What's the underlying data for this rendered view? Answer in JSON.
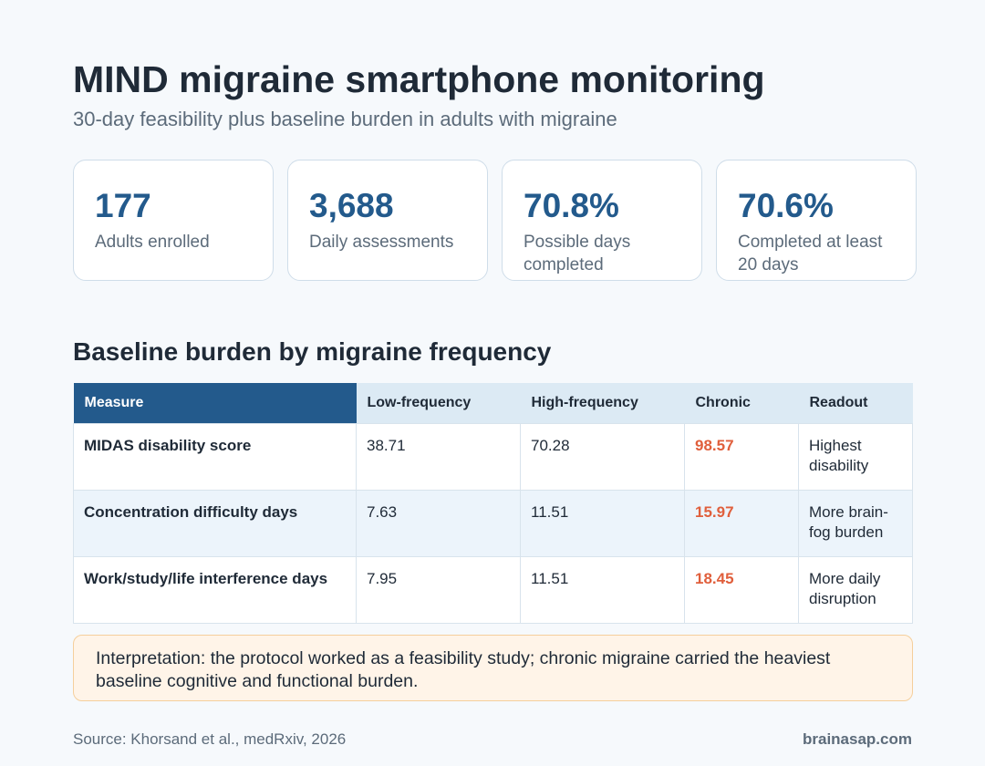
{
  "header": {
    "title": "MIND migraine smartphone monitoring",
    "subtitle": "30-day feasibility plus baseline burden in adults with migraine"
  },
  "stats": [
    {
      "value": "177",
      "label": "Adults enrolled"
    },
    {
      "value": "3,688",
      "label": "Daily assessments"
    },
    {
      "value": "70.8%",
      "label": "Possible days completed"
    },
    {
      "value": "70.6%",
      "label": "Completed at least 20 days"
    }
  ],
  "table": {
    "title": "Baseline burden by migraine frequency",
    "headers": {
      "measure": "Measure",
      "low": "Low-frequency",
      "high": "High-frequency",
      "chronic": "Chronic",
      "readout": "Readout"
    },
    "rows": [
      {
        "measure": "MIDAS disability score",
        "low": "38.71",
        "high": "70.28",
        "chronic": "98.57",
        "readout": "Highest disability"
      },
      {
        "measure": "Concentration difficulty days",
        "low": "7.63",
        "high": "11.51",
        "chronic": "15.97",
        "readout": "More brain-fog burden"
      },
      {
        "measure": "Work/study/life interference days",
        "low": "7.95",
        "high": "11.51",
        "chronic": "18.45",
        "readout": "More daily disruption"
      }
    ]
  },
  "interpretation": "Interpretation: the protocol worked as a feasibility study; chronic migraine carried the heaviest baseline cognitive and functional burden.",
  "footer": {
    "source": "Source: Khorsand et al., medRxiv, 2026",
    "brand": "brainasap.com"
  },
  "colors": {
    "accent": "#235a8c",
    "highlight": "#e05f3c",
    "note_background": "#fff4e8"
  }
}
